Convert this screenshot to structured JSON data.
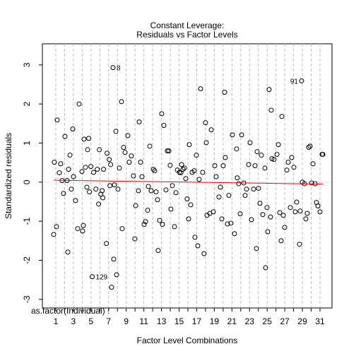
{
  "chart_data": {
    "type": "scatter",
    "title": "Constant Leverage:",
    "subtitle": "Residuals vs Factor Levels",
    "x_label": "Factor Level Combinations",
    "y_label": "Standardized residuals",
    "factor_label": "as.factor(Individual) :",
    "xlim": [
      -0.52,
      32.36
    ],
    "ylim": [
      -3.22,
      3.54
    ],
    "xticks": [
      1,
      3,
      5,
      7,
      9,
      11,
      13,
      15,
      17,
      19,
      21,
      23,
      25,
      27,
      29,
      31
    ],
    "level_lines": [
      1,
      2,
      3,
      4,
      5,
      6,
      7,
      8,
      9,
      10,
      11,
      12,
      13,
      14,
      15,
      16,
      17,
      18,
      19,
      20,
      21,
      22,
      23,
      24,
      25,
      26,
      27,
      28,
      29,
      30,
      31
    ],
    "yticks": [
      -3,
      -2,
      -1,
      0,
      1,
      2,
      3
    ],
    "reference_line": 0,
    "color": "#000000",
    "x": [
      0.76,
      0.84,
      1.08,
      1.16,
      1.4,
      1.56,
      1.72,
      1.88,
      2.04,
      2.29,
      2.37,
      2.45,
      2.61,
      2.77,
      2.93,
      3.01,
      3.25,
      3.49,
      3.65,
      3.97,
      4.05,
      4.13,
      4.21,
      4.37,
      4.53,
      4.61,
      4.74,
      4.82,
      4.98,
      5.14,
      5.3,
      5.55,
      5.71,
      5.87,
      5.95,
      6.11,
      6.27,
      6.35,
      6.43,
      6.75,
      6.83,
      7.07,
      7.15,
      7.23,
      7.34,
      7.5,
      7.58,
      7.66,
      7.82,
      7.9,
      8.06,
      8.22,
      8.46,
      8.54,
      8.7,
      8.86,
      9.18,
      9.34,
      9.58,
      9.82,
      9.98,
      10.07,
      10.39,
      10.47,
      10.63,
      10.79,
      11.03,
      11.19,
      11.43,
      11.51,
      11.67,
      11.83,
      12.07,
      12.23,
      12.39,
      12.55,
      12.63,
      12.79,
      13.03,
      13.11,
      13.27,
      13.51,
      13.67,
      13.83,
      13.99,
      14.07,
      14.24,
      14.48,
      14.64,
      14.8,
      15.04,
      15.2,
      15.28,
      15.44,
      15.6,
      15.76,
      15.92,
      16.08,
      16.16,
      16.32,
      16.48,
      16.72,
      16.8,
      16.96,
      17.12,
      17.28,
      17.44,
      17.68,
      17.84,
      18.0,
      18.09,
      18.17,
      18.49,
      18.65,
      18.89,
      19.05,
      19.21,
      19.53,
      19.69,
      19.85,
      20.01,
      20.17,
      20.25,
      20.49,
      20.65,
      20.89,
      21.05,
      21.29,
      21.53,
      21.61,
      21.77,
      21.94,
      22.1,
      22.34,
      22.5,
      22.66,
      22.9,
      23.06,
      23.22,
      23.46,
      23.62,
      23.78,
      23.86,
      24.02,
      24.18,
      24.34,
      24.5,
      24.74,
      24.82,
      24.98,
      25.06,
      25.22,
      25.38,
      25.46,
      25.54,
      25.78,
      26.11,
      26.27,
      26.43,
      26.59,
      26.67,
      26.83,
      26.99,
      27.23,
      27.39,
      27.63,
      27.79,
      28.03,
      28.19,
      28.35,
      28.67,
      28.75,
      28.91,
      28.99,
      29.23,
      29.39,
      29.55,
      29.71,
      29.87,
      30.04,
      30.2,
      30.44,
      30.6,
      30.76,
      31.0,
      31.24,
      31.32
    ],
    "values": [
      -1.34,
      0.51,
      -1.14,
      1.59,
      0.24,
      0.47,
      0.04,
      -0.29,
      1.17,
      0.04,
      -1.79,
      0.33,
      0.69,
      -0.18,
      1.36,
      0.14,
      -0.47,
      -1.19,
      2.0,
      0.27,
      -1.25,
      -1.11,
      1.1,
      0.38,
      -0.13,
      0.83,
      1.12,
      -0.25,
      0.4,
      -2.42,
      0.25,
      -0.18,
      0.33,
      -0.56,
      0.83,
      -0.31,
      -0.22,
      -0.4,
      0.33,
      -1.57,
      0.74,
      0.58,
      -0.09,
      0.45,
      -2.69,
      2.93,
      -1.97,
      -0.07,
      1.3,
      -2.37,
      -0.18,
      0.36,
      2.06,
      -1.19,
      0.89,
      0.76,
      1.19,
      0.51,
      0.67,
      0.16,
      -1.45,
      -0.6,
      -0.22,
      1.54,
      0.51,
      0.14,
      -1.08,
      -1.01,
      -0.72,
      -0.11,
      0.92,
      -0.22,
      0.33,
      0.29,
      -0.25,
      -0.45,
      -1.75,
      -0.98,
      1.75,
      -1.08,
      1.45,
      -0.2,
      0.8,
      0.8,
      0.43,
      -0.69,
      -0.09,
      -1.14,
      -0.27,
      0.31,
      0.25,
      0.24,
      0.45,
      0.33,
      0.36,
      0.09,
      -0.43,
      -0.94,
      0.96,
      -0.58,
      0.25,
      0.29,
      -1.41,
      0.69,
      -1.63,
      0.07,
      2.39,
      0.25,
      -1.83,
      1.52,
      1.01,
      -0.85,
      -0.8,
      1.34,
      -0.76,
      0.42,
      0.14,
      -0.38,
      -0.13,
      -0.94,
      0.42,
      2.3,
      0.63,
      -1.07,
      -0.34,
      -1.05,
      1.21,
      -1.32,
      0.85,
      0.11,
      -0.04,
      -0.81,
      1.21,
      -0.02,
      -0.34,
      -0.18,
      0.45,
      1.01,
      -0.96,
      -0.18,
      0.42,
      -1.7,
      0.78,
      -0.16,
      -0.54,
      0.69,
      -0.83,
      0.36,
      -2.19,
      -0.65,
      -1.27,
      2.37,
      -0.89,
      1.84,
      0.6,
      0.58,
      0.71,
      0.96,
      -0.78,
      -1.5,
      1.68,
      -0.85,
      -1.16,
      0.31,
      0.51,
      -0.65,
      0.63,
      0.38,
      -0.76,
      -0.51,
      -1.59,
      -0.74,
      2.59,
      0.0,
      -0.04,
      -0.94,
      -0.8,
      0.89,
      0.92,
      -0.02,
      0.47,
      -0.04,
      -0.52,
      -0.61,
      -0.76,
      0.71,
      0.71
    ],
    "annotations": [
      {
        "text": "8",
        "x": 7.5,
        "y": 2.93
      },
      {
        "text": "91",
        "x": 28.91,
        "y": 2.59
      },
      {
        "text": "129",
        "x": 5.14,
        "y": -2.42
      }
    ],
    "smooth": {
      "color": "#ff0000",
      "x": [
        0.76,
        31.32
      ],
      "y": [
        0.05,
        -0.05
      ]
    }
  }
}
